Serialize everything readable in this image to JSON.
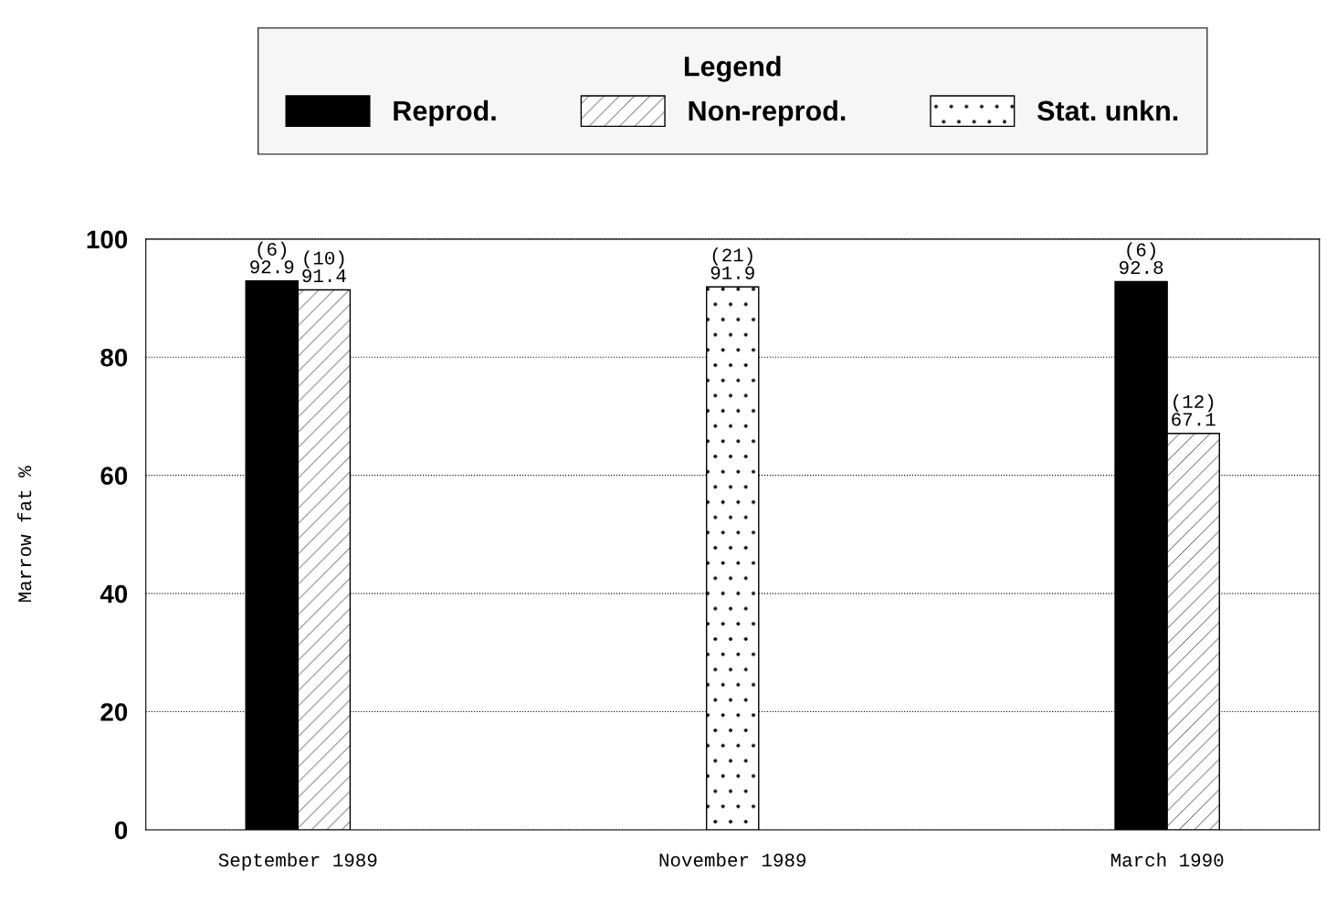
{
  "chart_data": {
    "type": "bar",
    "categories": [
      "September 1989",
      "November 1989",
      "March 1990"
    ],
    "ylabel": "Marrow fat %",
    "legend_title": "Legend",
    "series": [
      {
        "name": "Reprod.",
        "color": "#000000",
        "values": [
          92.9,
          null,
          92.8
        ],
        "value_labels": [
          "(6)\n92.9",
          null,
          "(6)\n92.8"
        ]
      },
      {
        "name": "Non-reprod.",
        "color": "#000000",
        "values": [
          91.4,
          null,
          67.1
        ],
        "value_labels": [
          "(10)\n91.4",
          null,
          "(12)\n67.1"
        ]
      },
      {
        "name": "Stat. unkn.",
        "color": "#000000",
        "values": [
          null,
          91.9,
          null
        ],
        "value_labels": [
          null,
          "(21)\n91.9",
          null
        ]
      }
    ],
    "ylim": [
      0,
      100
    ],
    "yticks": [
      0,
      20,
      40,
      60,
      80,
      100
    ],
    "grid": "y",
    "legend": "top"
  }
}
